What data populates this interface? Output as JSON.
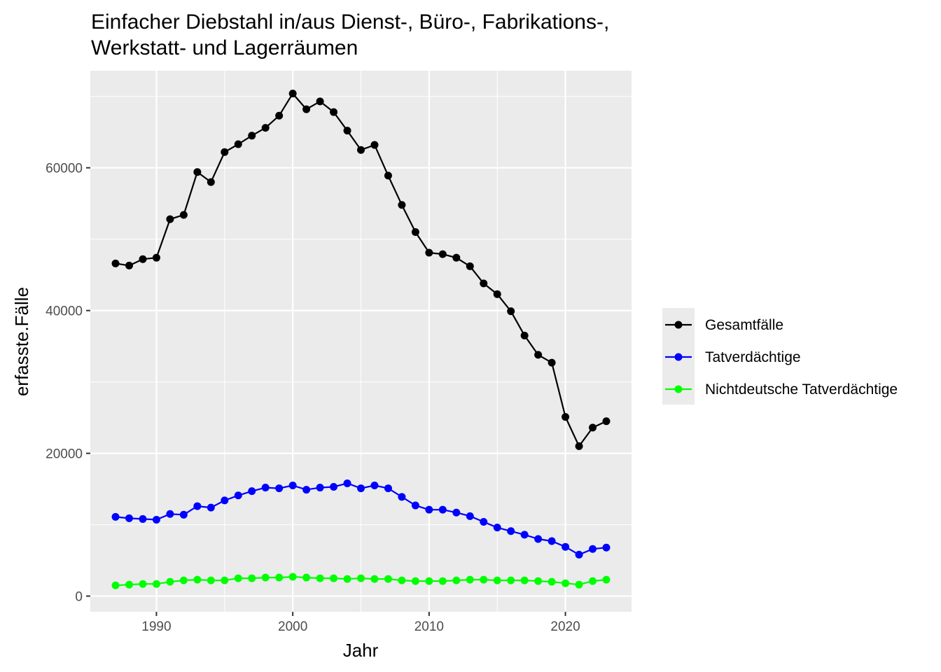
{
  "chart_data": {
    "type": "line",
    "title": "Einfacher Diebstahl in/aus Dienst-, Büro-, Fabrikations-,\nWerkstatt- und Lagerräumen",
    "xlabel": "Jahr",
    "ylabel": "erfasste.Fälle",
    "xlim": [
      1985.15,
      2024.85
    ],
    "ylim": [
      -2200,
      73600
    ],
    "x_ticks": [
      1990,
      2000,
      2010,
      2020
    ],
    "y_ticks": [
      0,
      20000,
      40000,
      60000
    ],
    "y_tick_labels": [
      "0",
      "20000",
      "40000",
      "60000"
    ],
    "grid": true,
    "legend_position": "right",
    "x": [
      1987,
      1988,
      1989,
      1990,
      1991,
      1992,
      1993,
      1994,
      1995,
      1996,
      1997,
      1998,
      1999,
      2000,
      2001,
      2002,
      2003,
      2004,
      2005,
      2006,
      2007,
      2008,
      2009,
      2010,
      2011,
      2012,
      2013,
      2014,
      2015,
      2016,
      2017,
      2018,
      2019,
      2020,
      2021,
      2022,
      2023
    ],
    "series": [
      {
        "name": "Gesamtfälle",
        "color": "#000000",
        "values": [
          46600,
          46300,
          47200,
          47400,
          52800,
          53400,
          59400,
          58000,
          62200,
          63300,
          64500,
          65600,
          67300,
          70400,
          68200,
          69300,
          67800,
          65200,
          62500,
          63200,
          58900,
          54800,
          51000,
          48100,
          47900,
          47400,
          46200,
          43800,
          42300,
          39900,
          36500,
          33800,
          32700,
          25100,
          21000,
          23600,
          24500
        ]
      },
      {
        "name": "Tatverdächtige",
        "color": "#0000ff",
        "values": [
          11100,
          10900,
          10800,
          10700,
          11500,
          11400,
          12600,
          12400,
          13400,
          14100,
          14700,
          15200,
          15100,
          15500,
          14900,
          15200,
          15300,
          15800,
          15100,
          15500,
          15100,
          13900,
          12700,
          12100,
          12100,
          11700,
          11200,
          10400,
          9600,
          9100,
          8600,
          8000,
          7700,
          6900,
          5800,
          6600,
          6800
        ]
      },
      {
        "name": "Nichtdeutsche Tatverdächtige",
        "color": "#00ff00",
        "values": [
          1500,
          1600,
          1700,
          1700,
          2000,
          2200,
          2300,
          2200,
          2200,
          2500,
          2500,
          2600,
          2600,
          2700,
          2600,
          2500,
          2500,
          2400,
          2500,
          2400,
          2400,
          2200,
          2100,
          2100,
          2100,
          2200,
          2300,
          2300,
          2200,
          2200,
          2200,
          2100,
          2000,
          1800,
          1600,
          2100,
          2300
        ]
      }
    ]
  }
}
